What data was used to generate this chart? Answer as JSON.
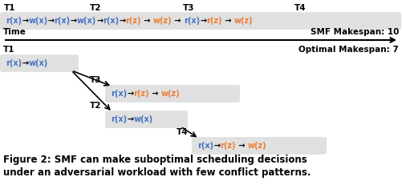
{
  "fig_width": 5.01,
  "fig_height": 2.36,
  "dpi": 100,
  "bg_color": "#ffffff",
  "blue_color": "#4472C4",
  "orange_color": "#ED7D31",
  "black_color": "#000000",
  "caption_line1": "Figure 2: SMF can make suboptimal scheduling decisions",
  "caption_line2": "under an adversarial workload with few conflict patterns.",
  "smf_label": "SMF Makespan: 10",
  "optimal_label": "Optimal Makespan: 7",
  "time_label": "Time",
  "t1_label": "T1",
  "t2_label": "T2",
  "t3_label": "T3",
  "t4_label": "T4",
  "top_seq": [
    [
      "r(x)",
      "blue"
    ],
    [
      "→",
      "black"
    ],
    [
      "w(x)",
      "blue"
    ],
    [
      "→",
      "black"
    ],
    [
      "r(x)",
      "blue"
    ],
    [
      "→",
      "black"
    ],
    [
      "w(x)",
      "blue"
    ],
    [
      "→",
      "black"
    ],
    [
      "r(x)",
      "blue"
    ],
    [
      "→",
      "black"
    ],
    [
      "r(z)",
      "orange"
    ],
    [
      " → ",
      "black"
    ],
    [
      "w(z)",
      "orange"
    ],
    [
      " → ",
      "black"
    ],
    [
      "r(x)",
      "blue"
    ],
    [
      "→",
      "black"
    ],
    [
      "r(z)",
      "orange"
    ],
    [
      " → ",
      "black"
    ],
    [
      "w(z)",
      "orange"
    ]
  ],
  "bot_t1_seq": [
    [
      "r(x)",
      "blue"
    ],
    [
      "→",
      "black"
    ],
    [
      "w(x)",
      "blue"
    ]
  ],
  "bot_t3_seq": [
    [
      "r(x)",
      "blue"
    ],
    [
      "→",
      "black"
    ],
    [
      "r(z)",
      "orange"
    ],
    [
      " → ",
      "black"
    ],
    [
      "w(z)",
      "orange"
    ]
  ],
  "bot_t2_seq": [
    [
      "r(x)",
      "blue"
    ],
    [
      "→",
      "black"
    ],
    [
      "w(x)",
      "blue"
    ]
  ],
  "bot_t4_seq": [
    [
      "r(x)",
      "blue"
    ],
    [
      "→",
      "black"
    ],
    [
      "r(z)",
      "orange"
    ],
    [
      " → ",
      "black"
    ],
    [
      "w(z)",
      "orange"
    ]
  ]
}
